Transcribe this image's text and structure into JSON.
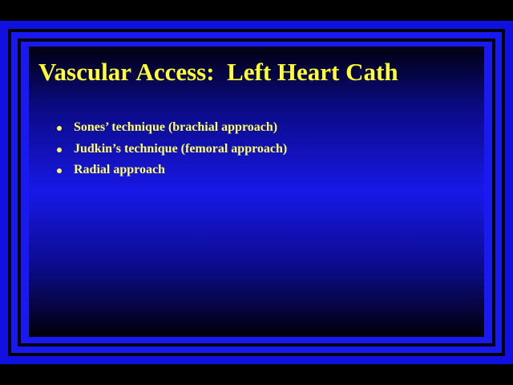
{
  "slide": {
    "title": "Vascular Access:  Left Heart Cath",
    "bullets": [
      "Sones’ technique (brachial approach)",
      "Judkin’s technique (femoral approach)",
      "Radial approach"
    ]
  }
}
